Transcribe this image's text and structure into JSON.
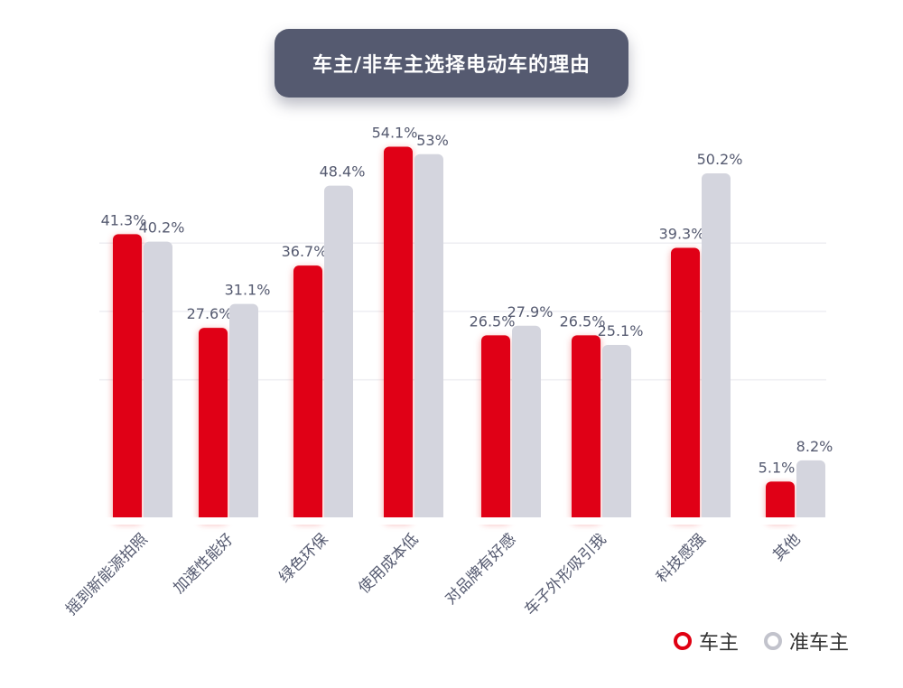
{
  "chart_data": {
    "type": "bar",
    "title": "车主/非车主选择电动车的理由",
    "categories": [
      "摇到新能源拍照",
      "加速性能好",
      "绿色环保",
      "使用成本低",
      "对品牌有好感",
      "车子外形吸引我",
      "科技感强",
      "其他"
    ],
    "series": [
      {
        "name": "车主",
        "values": [
          41.3,
          27.6,
          36.7,
          54.1,
          26.5,
          26.5,
          39.3,
          5.1
        ],
        "labels": [
          "41.3%",
          "27.6%",
          "36.7%",
          "54.1%",
          "26.5%",
          "26.5%",
          "39.3%",
          "5.1%"
        ],
        "color": "#e00012"
      },
      {
        "name": "准车主",
        "values": [
          40.2,
          31.1,
          48.4,
          53,
          27.9,
          25.1,
          50.2,
          8.2
        ],
        "labels": [
          "40.2%",
          "31.1%",
          "48.4%",
          "53%",
          "27.9%",
          "25.1%",
          "50.2%",
          "8.2%"
        ],
        "color": "#d4d5de"
      }
    ],
    "ylim": [
      0,
      60
    ],
    "grid": true,
    "legend": "bottom-right"
  }
}
